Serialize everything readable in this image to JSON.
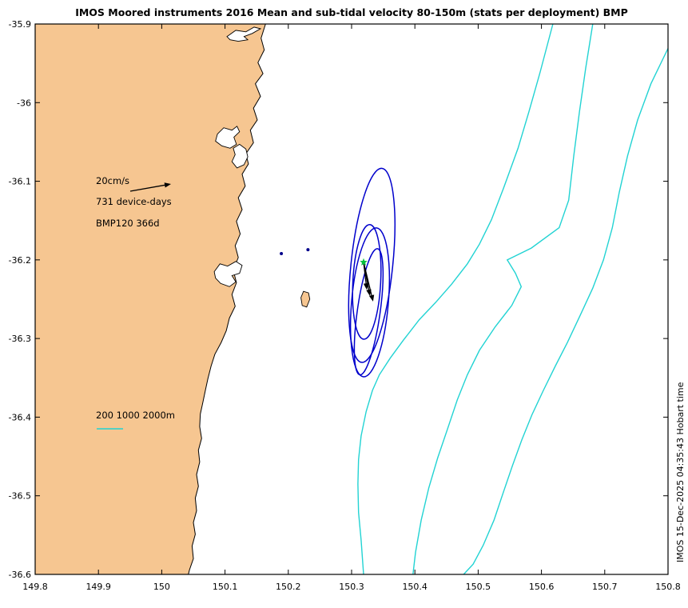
{
  "watermark": "IMOS 15-Dec-2025 04:35:43 Hobart time",
  "legend": {
    "scale_label": "20cm/s",
    "device_days": "731 device-days",
    "deployment": "BMP120 366d",
    "contour_label": "200 1000 2000m"
  },
  "colors": {
    "land": "#F6C691",
    "contour": "#22D3D3",
    "ellipse": "#0000CC",
    "arrow": "#000000",
    "station": "#00C03C",
    "dot": "#00008B"
  },
  "chart_data": {
    "type": "map",
    "title": "IMOS Moored instruments 2016 Mean and sub-tidal velocity 80-150m (stats per deployment) BMP",
    "xlabel": "",
    "ylabel": "",
    "xlim": [
      149.8,
      150.8
    ],
    "ylim": [
      -36.6,
      -35.9
    ],
    "grid": false,
    "x_ticks": {
      "values": [
        149.8,
        149.9,
        150,
        150.1,
        150.2,
        150.3,
        150.4,
        150.5,
        150.6,
        150.7,
        150.8
      ],
      "labels": [
        "149.8",
        "149.9",
        "150",
        "150.1",
        "150.2",
        "150.3",
        "150.4",
        "150.5",
        "150.6",
        "150.7",
        "150.8"
      ]
    },
    "y_ticks": {
      "values": [
        -35.9,
        -36,
        -36.1,
        -36.2,
        -36.3,
        -36.4,
        -36.5,
        -36.6
      ],
      "labels": [
        "-35.9",
        "-36",
        "-36.1",
        "-36.2",
        "-36.3",
        "-36.4",
        "-36.5",
        "-36.6"
      ]
    },
    "reference_vector_cm_s": 20,
    "station": {
      "name": "BMP120",
      "lon": 150.319,
      "lat": -36.203,
      "deployment_days": 366,
      "total_device_days": 731
    },
    "velocity_arrows": [
      {
        "to": [
          150.334,
          -36.253
        ]
      },
      {
        "to": [
          150.329,
          -36.246
        ]
      },
      {
        "to": [
          150.324,
          -36.238
        ]
      }
    ],
    "offshore_points": [
      [
        150.189,
        -36.192
      ],
      [
        150.231,
        -36.187
      ]
    ],
    "variance_ellipses": [
      {
        "center": [
          150.332,
          -36.207
        ],
        "rx": 0.033,
        "ry": 0.124,
        "rot": 6
      },
      {
        "center": [
          150.329,
          -36.254
        ],
        "rx": 0.029,
        "ry": 0.095,
        "rot": 5
      },
      {
        "center": [
          150.324,
          -36.228
        ],
        "rx": 0.022,
        "ry": 0.073,
        "rot": 3
      },
      {
        "center": [
          150.327,
          -36.266
        ],
        "rx": 0.018,
        "ry": 0.081,
        "rot": 8
      }
    ],
    "isobath_contours": [
      {
        "depth_m": 200,
        "points": [
          [
            150.618,
            -35.9
          ],
          [
            150.598,
            -35.961
          ],
          [
            150.58,
            -36.012
          ],
          [
            150.563,
            -36.058
          ],
          [
            150.54,
            -36.109
          ],
          [
            150.521,
            -36.149
          ],
          [
            150.502,
            -36.18
          ],
          [
            150.483,
            -36.205
          ],
          [
            150.458,
            -36.231
          ],
          [
            150.433,
            -36.254
          ],
          [
            150.407,
            -36.276
          ],
          [
            150.382,
            -36.302
          ],
          [
            150.361,
            -36.325
          ],
          [
            150.344,
            -36.346
          ],
          [
            150.333,
            -36.366
          ],
          [
            150.323,
            -36.393
          ],
          [
            150.315,
            -36.424
          ],
          [
            150.311,
            -36.454
          ],
          [
            150.31,
            -36.485
          ],
          [
            150.311,
            -36.521
          ],
          [
            150.315,
            -36.556
          ],
          [
            150.319,
            -36.6
          ]
        ]
      },
      {
        "depth_m": 1000,
        "points": [
          [
            150.681,
            -35.9
          ],
          [
            150.67,
            -35.956
          ],
          [
            150.66,
            -36.012
          ],
          [
            150.651,
            -36.068
          ],
          [
            150.643,
            -36.124
          ],
          [
            150.628,
            -36.159
          ],
          [
            150.584,
            -36.185
          ],
          [
            150.546,
            -36.2
          ],
          [
            150.559,
            -36.217
          ],
          [
            150.568,
            -36.234
          ],
          [
            150.553,
            -36.258
          ],
          [
            150.527,
            -36.285
          ],
          [
            150.502,
            -36.315
          ],
          [
            150.483,
            -36.346
          ],
          [
            150.467,
            -36.378
          ],
          [
            150.452,
            -36.414
          ],
          [
            150.436,
            -36.452
          ],
          [
            150.422,
            -36.49
          ],
          [
            150.41,
            -36.531
          ],
          [
            150.401,
            -36.572
          ],
          [
            150.397,
            -36.6
          ]
        ]
      },
      {
        "depth_m": 2000,
        "points": [
          [
            150.8,
            -35.931
          ],
          [
            150.773,
            -35.976
          ],
          [
            150.752,
            -36.022
          ],
          [
            150.736,
            -36.068
          ],
          [
            150.723,
            -36.114
          ],
          [
            150.712,
            -36.159
          ],
          [
            150.698,
            -36.2
          ],
          [
            150.681,
            -36.236
          ],
          [
            150.661,
            -36.271
          ],
          [
            150.641,
            -36.305
          ],
          [
            150.622,
            -36.335
          ],
          [
            150.603,
            -36.366
          ],
          [
            150.585,
            -36.397
          ],
          [
            150.569,
            -36.429
          ],
          [
            150.554,
            -36.462
          ],
          [
            150.54,
            -36.495
          ],
          [
            150.525,
            -36.531
          ],
          [
            150.508,
            -36.563
          ],
          [
            150.492,
            -36.587
          ],
          [
            150.477,
            -36.6
          ]
        ]
      }
    ],
    "coastline": [
      [
        150.164,
        -35.9
      ],
      [
        150.157,
        -35.918
      ],
      [
        150.162,
        -35.933
      ],
      [
        150.152,
        -35.949
      ],
      [
        150.16,
        -35.963
      ],
      [
        150.148,
        -35.976
      ],
      [
        150.156,
        -35.992
      ],
      [
        150.145,
        -36.007
      ],
      [
        150.151,
        -36.022
      ],
      [
        150.14,
        -36.035
      ],
      [
        150.145,
        -36.051
      ],
      [
        150.133,
        -36.065
      ],
      [
        150.137,
        -36.078
      ],
      [
        150.127,
        -36.091
      ],
      [
        150.132,
        -36.106
      ],
      [
        150.121,
        -36.121
      ],
      [
        150.127,
        -36.136
      ],
      [
        150.118,
        -36.151
      ],
      [
        150.124,
        -36.167
      ],
      [
        150.116,
        -36.182
      ],
      [
        150.121,
        -36.197
      ],
      [
        150.113,
        -36.213
      ],
      [
        150.118,
        -36.229
      ],
      [
        150.111,
        -36.244
      ],
      [
        150.116,
        -36.259
      ],
      [
        150.107,
        -36.274
      ],
      [
        150.102,
        -36.29
      ],
      [
        150.094,
        -36.305
      ],
      [
        150.084,
        -36.32
      ],
      [
        150.078,
        -36.335
      ],
      [
        150.073,
        -36.351
      ],
      [
        150.069,
        -36.366
      ],
      [
        150.065,
        -36.381
      ],
      [
        150.061,
        -36.396
      ],
      [
        150.06,
        -36.412
      ],
      [
        150.063,
        -36.427
      ],
      [
        150.058,
        -36.442
      ],
      [
        150.06,
        -36.457
      ],
      [
        150.055,
        -36.473
      ],
      [
        150.058,
        -36.488
      ],
      [
        150.053,
        -36.503
      ],
      [
        150.055,
        -36.519
      ],
      [
        150.05,
        -36.534
      ],
      [
        150.053,
        -36.549
      ],
      [
        150.048,
        -36.564
      ],
      [
        150.05,
        -36.58
      ],
      [
        150.044,
        -36.594
      ],
      [
        150.042,
        -36.6
      ]
    ],
    "white_features": [
      [
        [
          150.103,
          -35.916
        ],
        [
          150.117,
          -35.908
        ],
        [
          150.133,
          -35.91
        ],
        [
          150.146,
          -35.904
        ],
        [
          150.156,
          -35.906
        ],
        [
          150.143,
          -35.912
        ],
        [
          150.13,
          -35.916
        ],
        [
          150.136,
          -35.92
        ],
        [
          150.121,
          -35.922
        ],
        [
          150.108,
          -35.92
        ]
      ],
      [
        [
          150.088,
          -36.04
        ],
        [
          150.098,
          -36.032
        ],
        [
          150.111,
          -36.035
        ],
        [
          150.119,
          -36.03
        ],
        [
          150.123,
          -36.037
        ],
        [
          150.114,
          -36.044
        ],
        [
          150.118,
          -36.053
        ],
        [
          150.108,
          -36.058
        ],
        [
          150.095,
          -36.055
        ],
        [
          150.085,
          -36.049
        ]
      ],
      [
        [
          150.113,
          -36.058
        ],
        [
          150.123,
          -36.053
        ],
        [
          150.133,
          -36.059
        ],
        [
          150.136,
          -36.069
        ],
        [
          150.13,
          -36.079
        ],
        [
          150.119,
          -36.083
        ],
        [
          150.111,
          -36.075
        ],
        [
          150.116,
          -36.066
        ]
      ],
      [
        [
          150.083,
          -36.215
        ],
        [
          150.092,
          -36.205
        ],
        [
          150.104,
          -36.208
        ],
        [
          150.117,
          -36.202
        ],
        [
          150.127,
          -36.207
        ],
        [
          150.123,
          -36.217
        ],
        [
          150.111,
          -36.22
        ],
        [
          150.117,
          -36.228
        ],
        [
          150.107,
          -36.234
        ],
        [
          150.093,
          -36.23
        ],
        [
          150.085,
          -36.223
        ]
      ]
    ],
    "islands": [
      [
        [
          150.224,
          -36.24
        ],
        [
          150.232,
          -36.242
        ],
        [
          150.234,
          -36.25
        ],
        [
          150.229,
          -36.26
        ],
        [
          150.222,
          -36.258
        ],
        [
          150.22,
          -36.248
        ]
      ]
    ]
  }
}
